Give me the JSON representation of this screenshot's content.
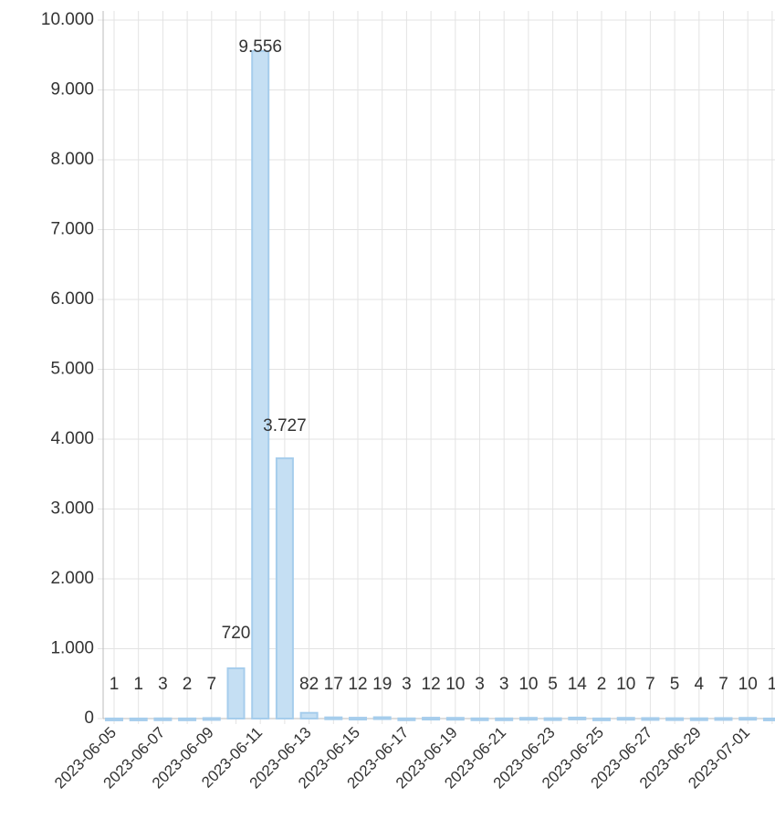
{
  "chart_data": {
    "type": "bar",
    "categories": [
      "2023-06-05",
      null,
      "2023-06-07",
      null,
      "2023-06-09",
      null,
      "2023-06-11",
      null,
      "2023-06-13",
      null,
      "2023-06-15",
      null,
      "2023-06-17",
      null,
      "2023-06-19",
      null,
      "2023-06-21",
      null,
      "2023-06-23",
      null,
      "2023-06-25",
      null,
      "2023-06-27",
      null,
      "2023-06-29",
      null,
      "2023-07-01",
      null
    ],
    "values": [
      1,
      1,
      3,
      2,
      7,
      720,
      9556,
      3727,
      82,
      17,
      12,
      19,
      3,
      12,
      10,
      3,
      3,
      10,
      5,
      14,
      2,
      10,
      7,
      5,
      4,
      7,
      10,
      1
    ],
    "value_labels": [
      "1",
      "1",
      "3",
      "2",
      "7",
      "720",
      "9.556",
      "3.727",
      "82",
      "17",
      "12",
      "19",
      "3",
      "12",
      "10",
      "3",
      "3",
      "10",
      "5",
      "14",
      "2",
      "10",
      "7",
      "5",
      "4",
      "7",
      "10",
      "1"
    ],
    "color": "#c5dff3",
    "ylim": [
      0,
      10000
    ],
    "yticks": [
      0,
      {
        "value": 1000,
        "label": "1.000"
      },
      {
        "value": 2000,
        "label": "2.000"
      },
      {
        "value": 3000,
        "label": "3.000"
      },
      {
        "value": 4000,
        "label": "4.000"
      },
      {
        "value": 5000,
        "label": "5.000"
      },
      {
        "value": 6000,
        "label": "6.000"
      },
      {
        "value": 7000,
        "label": "7.000"
      },
      {
        "value": 8000,
        "label": "8.000"
      },
      {
        "value": 9000,
        "label": "9.000"
      },
      {
        "value": 10000,
        "label": "10.000"
      }
    ],
    "grid": true
  }
}
